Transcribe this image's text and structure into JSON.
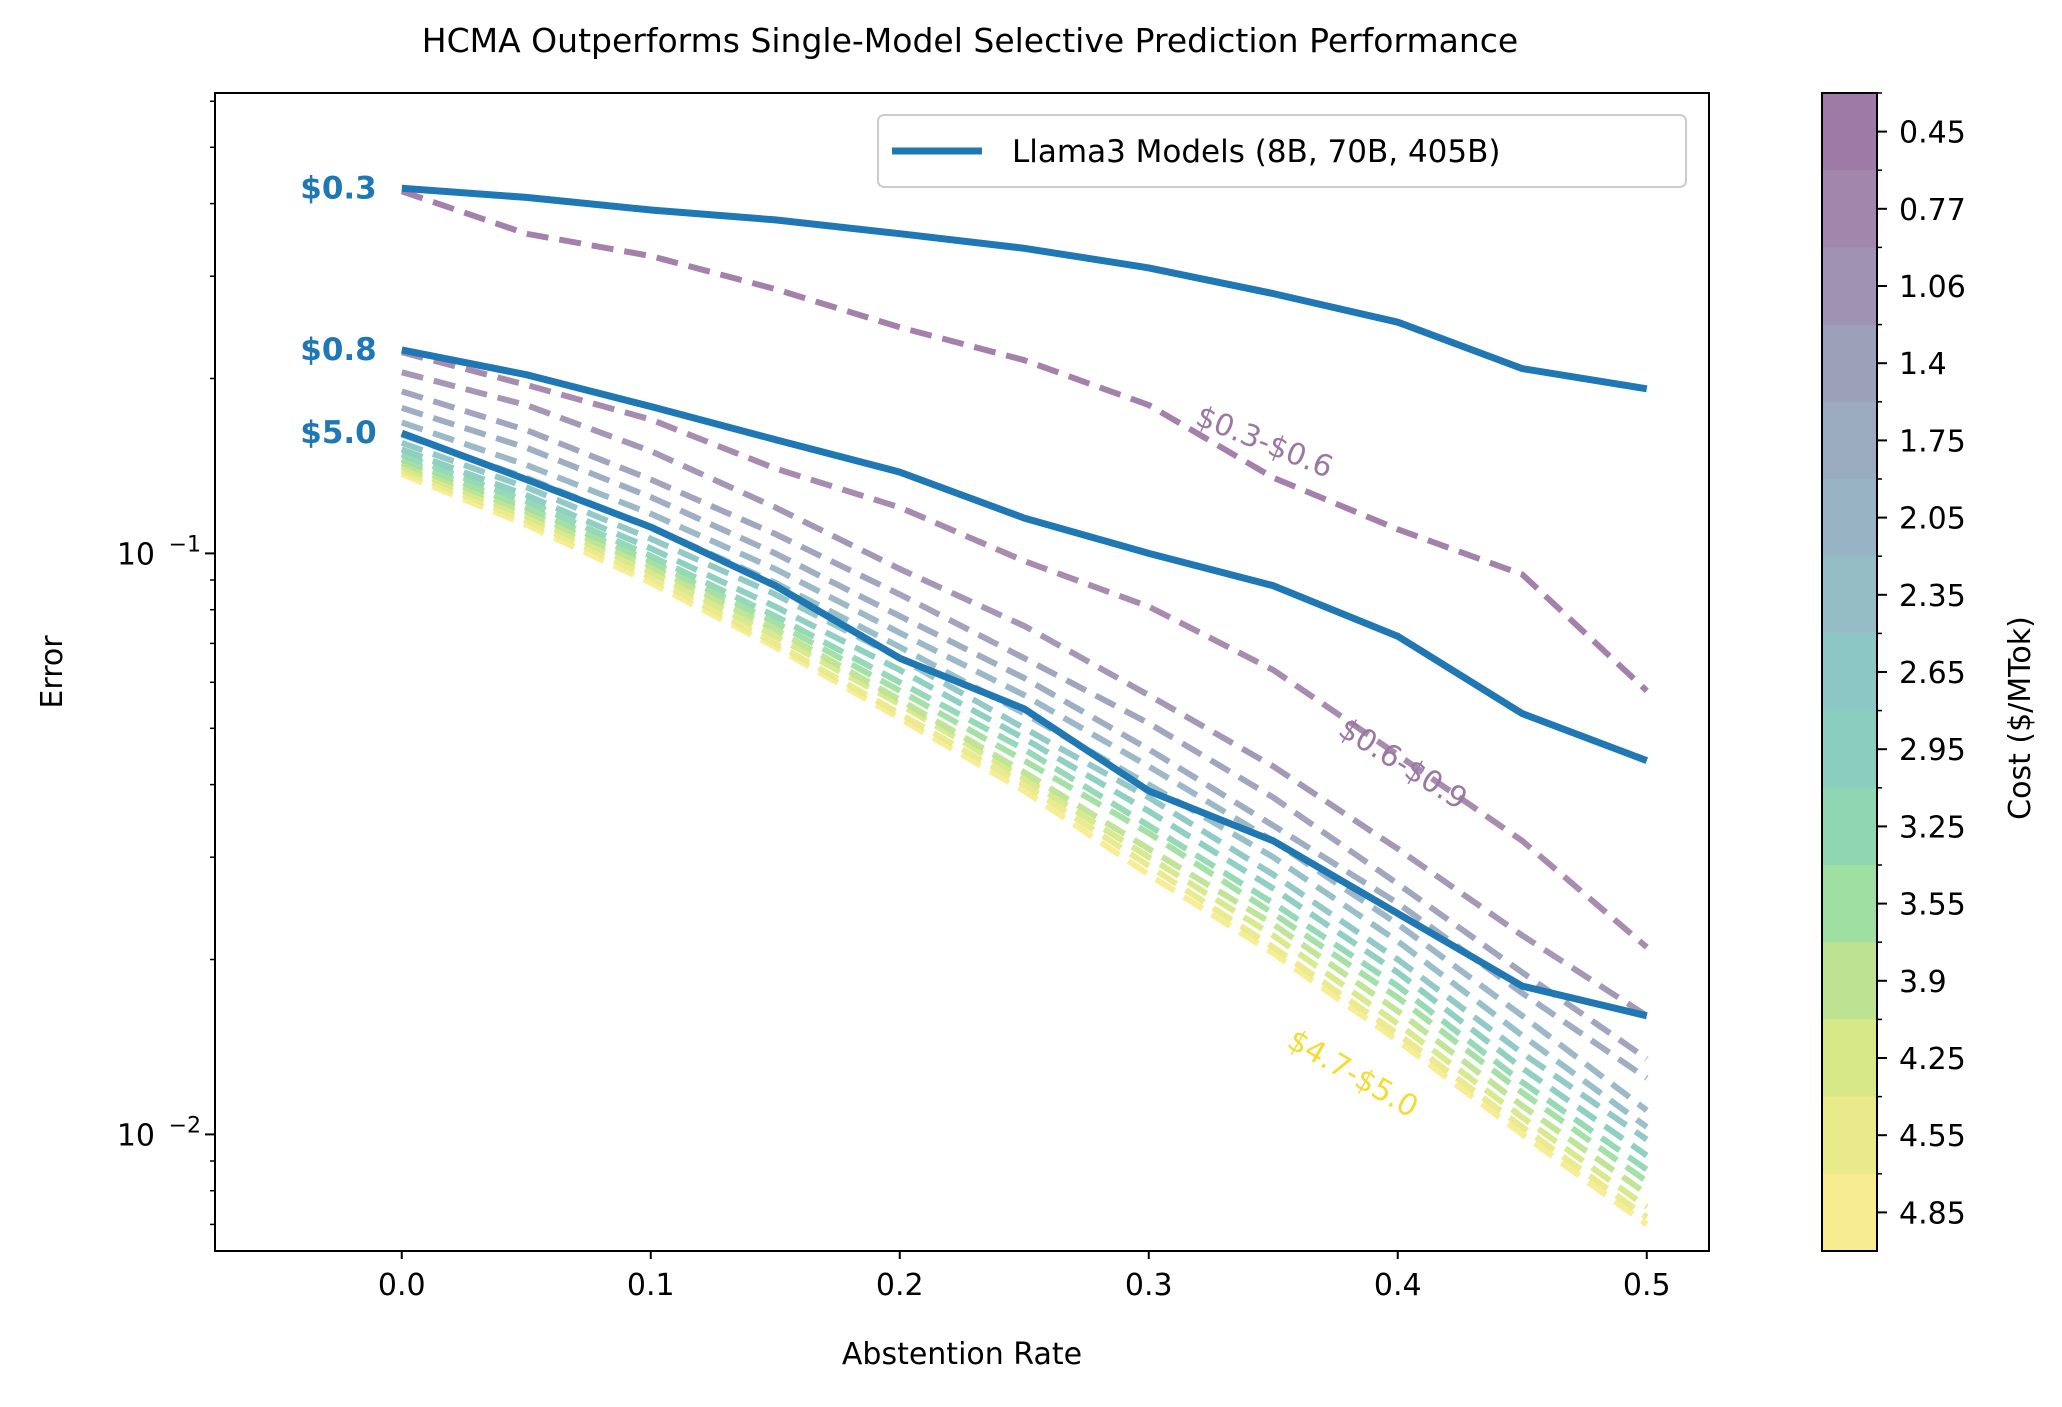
{
  "chart_data": {
    "type": "line",
    "title": "HCMA Outperforms Single-Model Selective Prediction Performance",
    "xlabel": "Abstention Rate",
    "ylabel": "Error",
    "yscale": "log",
    "xlim": [
      -0.075,
      0.525
    ],
    "ylim": [
      0.0063,
      0.62
    ],
    "x_ticks": [
      0.0,
      0.1,
      0.2,
      0.3,
      0.4,
      0.5
    ],
    "x_tick_labels": [
      "0.0",
      "0.1",
      "0.2",
      "0.3",
      "0.4",
      "0.5"
    ],
    "y_ticks": [
      0.1,
      0.01
    ],
    "y_tick_labels": [
      {
        "base": "10",
        "exp": "−1"
      },
      {
        "base": "10",
        "exp": "−2"
      }
    ],
    "legend": {
      "label": "Llama3 Models (8B, 70B, 405B)",
      "position": "upper right"
    },
    "x": [
      0.0,
      0.05,
      0.1,
      0.15,
      0.2,
      0.25,
      0.3,
      0.35,
      0.4,
      0.45,
      0.5
    ],
    "series": [
      {
        "name": "Llama3 8B",
        "cost_label": "$0.3",
        "color": "#1f77b4",
        "style": "solid",
        "values": [
          0.425,
          0.41,
          0.39,
          0.375,
          0.355,
          0.335,
          0.31,
          0.28,
          0.25,
          0.208,
          0.192
        ]
      },
      {
        "name": "Llama3 70B",
        "cost_label": "$0.8",
        "color": "#1f77b4",
        "style": "solid",
        "values": [
          0.224,
          0.203,
          0.179,
          0.157,
          0.138,
          0.115,
          0.1,
          0.088,
          0.072,
          0.053,
          0.044
        ]
      },
      {
        "name": "Llama3 405B",
        "cost_label": "$5.0",
        "color": "#1f77b4",
        "style": "solid",
        "values": [
          0.161,
          0.134,
          0.111,
          0.088,
          0.066,
          0.054,
          0.039,
          0.032,
          0.024,
          0.018,
          0.016
        ]
      }
    ],
    "hcma_curves": [
      {
        "cost": 0.45,
        "values": [
          0.42,
          0.355,
          0.325,
          0.285,
          0.245,
          0.215,
          0.18,
          0.135,
          0.11,
          0.092,
          0.058
        ]
      },
      {
        "cost": 0.77,
        "values": [
          0.222,
          0.195,
          0.17,
          0.14,
          0.12,
          0.097,
          0.081,
          0.063,
          0.045,
          0.032,
          0.021
        ]
      },
      {
        "cost": 1.06,
        "values": [
          0.205,
          0.18,
          0.15,
          0.12,
          0.094,
          0.075,
          0.057,
          0.043,
          0.031,
          0.022,
          0.016
        ]
      },
      {
        "cost": 1.4,
        "values": [
          0.19,
          0.163,
          0.134,
          0.108,
          0.085,
          0.066,
          0.051,
          0.038,
          0.027,
          0.019,
          0.0135
        ]
      },
      {
        "cost": 1.75,
        "values": [
          0.178,
          0.152,
          0.125,
          0.1,
          0.078,
          0.061,
          0.046,
          0.034,
          0.025,
          0.0175,
          0.0125
        ]
      },
      {
        "cost": 2.05,
        "values": [
          0.168,
          0.142,
          0.117,
          0.094,
          0.073,
          0.057,
          0.043,
          0.032,
          0.023,
          0.016,
          0.011
        ]
      },
      {
        "cost": 2.35,
        "values": [
          0.16,
          0.135,
          0.111,
          0.089,
          0.069,
          0.053,
          0.04,
          0.03,
          0.0215,
          0.0148,
          0.0103
        ]
      },
      {
        "cost": 2.65,
        "values": [
          0.155,
          0.13,
          0.106,
          0.085,
          0.066,
          0.05,
          0.038,
          0.028,
          0.02,
          0.0138,
          0.0098
        ]
      },
      {
        "cost": 2.95,
        "values": [
          0.151,
          0.126,
          0.102,
          0.081,
          0.063,
          0.048,
          0.036,
          0.0265,
          0.019,
          0.013,
          0.0092
        ]
      },
      {
        "cost": 3.25,
        "values": [
          0.148,
          0.123,
          0.099,
          0.078,
          0.06,
          0.046,
          0.034,
          0.025,
          0.018,
          0.0123,
          0.0087
        ]
      },
      {
        "cost": 3.55,
        "values": [
          0.145,
          0.12,
          0.097,
          0.076,
          0.058,
          0.044,
          0.033,
          0.024,
          0.0172,
          0.0118,
          0.0083
        ]
      },
      {
        "cost": 3.9,
        "values": [
          0.143,
          0.118,
          0.095,
          0.074,
          0.056,
          0.042,
          0.031,
          0.023,
          0.0163,
          0.0112,
          0.0079
        ]
      },
      {
        "cost": 4.25,
        "values": [
          0.141,
          0.116,
          0.093,
          0.072,
          0.055,
          0.041,
          0.03,
          0.022,
          0.0155,
          0.0107,
          0.0075
        ]
      },
      {
        "cost": 4.55,
        "values": [
          0.139,
          0.114,
          0.091,
          0.07,
          0.053,
          0.04,
          0.029,
          0.021,
          0.0149,
          0.0103,
          0.0072
        ]
      },
      {
        "cost": 4.85,
        "values": [
          0.137,
          0.112,
          0.089,
          0.069,
          0.052,
          0.039,
          0.028,
          0.0205,
          0.0145,
          0.01,
          0.007
        ]
      }
    ],
    "curve_labels": [
      {
        "text": "$0.3-$0.6",
        "x": 0.345,
        "y": 0.15,
        "color": "#9a78a4",
        "angle": 22
      },
      {
        "text": "$0.6-$0.9",
        "x": 0.4,
        "y": 0.042,
        "color": "#9a78a4",
        "angle": 32
      },
      {
        "text": "$4.7-$5.0",
        "x": 0.38,
        "y": 0.0123,
        "color": "#f4dc33",
        "angle": 30
      }
    ],
    "colorbar": {
      "label": "Cost ($/MTok)",
      "ticks": [
        "0.45",
        "0.77",
        "1.06",
        "1.4",
        "1.75",
        "2.05",
        "2.35",
        "2.65",
        "2.95",
        "3.25",
        "3.55",
        "3.9",
        "4.25",
        "4.55",
        "4.85"
      ],
      "colors": [
        "#9e7aa6",
        "#a386ab",
        "#a092b2",
        "#9da0b9",
        "#9aaabf",
        "#98b4c4",
        "#94bdc6",
        "#8dc7c5",
        "#89cebf",
        "#8fd7b2",
        "#a0dfa2",
        "#bde392",
        "#d6e888",
        "#e9ea8a",
        "#f7ec8f"
      ]
    }
  }
}
